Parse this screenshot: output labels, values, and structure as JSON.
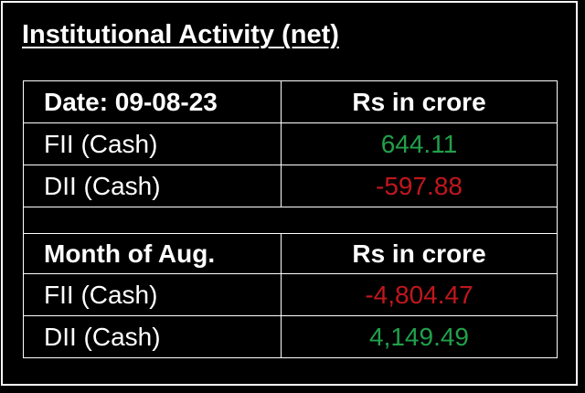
{
  "title": "Institutional Activity (net)",
  "colors": {
    "background": "#000000",
    "text": "#ffffff",
    "positive": "#21a04a",
    "negative": "#c0171d"
  },
  "daily": {
    "header_label": "Date: 09-08-23",
    "header_unit": "Rs in crore",
    "rows": [
      {
        "label": "FII (Cash)",
        "value": "644.11",
        "sign": "positive"
      },
      {
        "label": "DII (Cash)",
        "value": "-597.88",
        "sign": "negative"
      }
    ]
  },
  "monthly": {
    "header_label": "Month of Aug.",
    "header_unit": "Rs in crore",
    "rows": [
      {
        "label": "FII (Cash)",
        "value": "-4,804.47",
        "sign": "negative"
      },
      {
        "label": "DII (Cash)",
        "value": "4,149.49",
        "sign": "positive"
      }
    ]
  }
}
